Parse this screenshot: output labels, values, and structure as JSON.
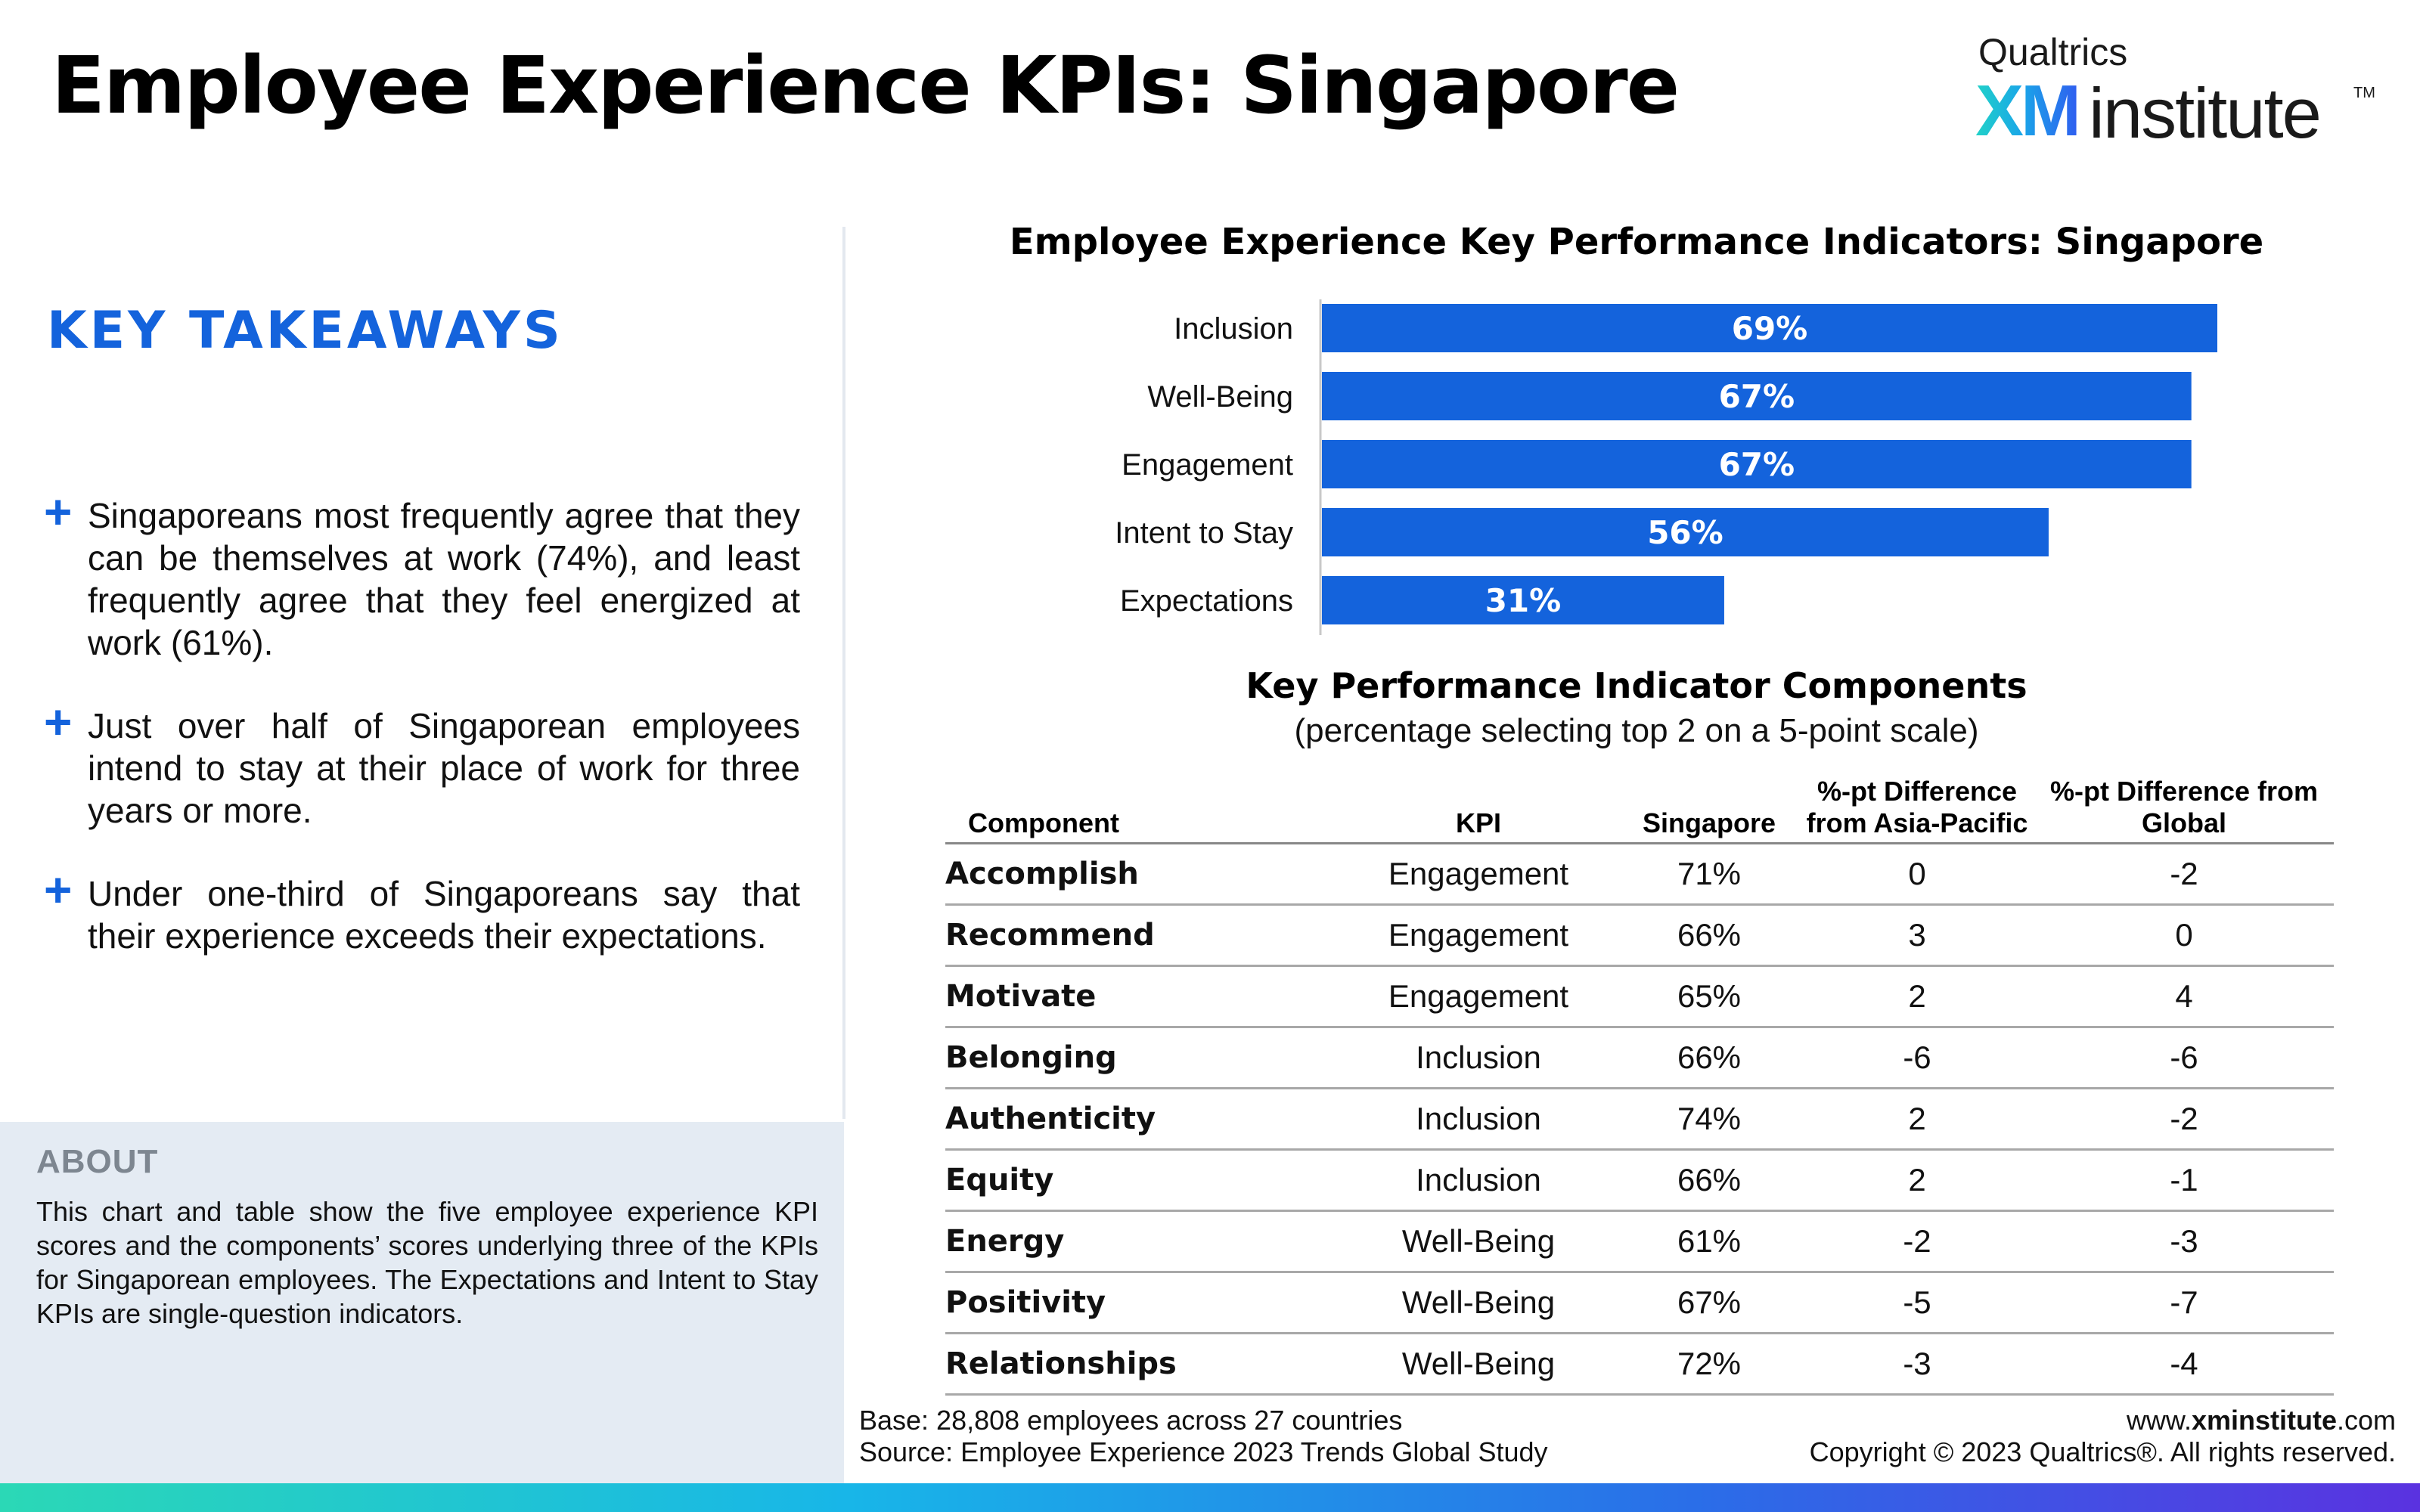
{
  "page": {
    "title": "Employee Experience KPIs: Singapore"
  },
  "logo": {
    "top": "Qualtrics",
    "xm": "XM",
    "institute": "institute",
    "tm": "TM"
  },
  "takeaways": {
    "heading": "KEY TAKEAWAYS",
    "plus_symbol": "+",
    "items": [
      "Singaporeans most frequently agree that they can be themselves at work (74%), and least frequently agree that they feel energized at work (61%).",
      "Just over half of Singaporean employees intend to stay at their place of work for three years or more.",
      "Under one-third of Singaporeans say that their experience exceeds their expectations."
    ]
  },
  "about": {
    "heading": "ABOUT",
    "text": "This chart and table show the five employee experience KPI scores and the components’ scores underlying three of the KPIs for Singaporean employees. The Expectations and Intent to Stay KPIs are single-question indicators."
  },
  "chart_data": {
    "type": "bar",
    "orientation": "horizontal",
    "title": "Employee Experience Key Performance Indicators: Singapore",
    "categories": [
      "Inclusion",
      "Well-Being",
      "Engagement",
      "Intent to Stay",
      "Expectations"
    ],
    "values": [
      69,
      67,
      67,
      56,
      31
    ],
    "value_labels": [
      "69%",
      "67%",
      "67%",
      "56%",
      "31%"
    ],
    "unit": "%",
    "xlim": [
      0,
      69
    ],
    "bar_color": "#1463dc",
    "label_color": "#ffffff",
    "grid": false,
    "legend": "none"
  },
  "components": {
    "title": "Key Performance Indicator Components",
    "subtitle": "(percentage selecting top 2 on a 5-point scale)",
    "headers": {
      "component": "Component",
      "kpi": "KPI",
      "singapore": "Singapore",
      "diff_apac_line1": "%-pt Difference",
      "diff_apac_line2": "from Asia-Pacific",
      "diff_global_line1": "%-pt Difference from",
      "diff_global_line2": "Global"
    },
    "rows": [
      {
        "component": "Accomplish",
        "kpi": "Engagement",
        "singapore": "71%",
        "diff_apac": "0",
        "diff_global": "-2"
      },
      {
        "component": "Recommend",
        "kpi": "Engagement",
        "singapore": "66%",
        "diff_apac": "3",
        "diff_global": "0"
      },
      {
        "component": "Motivate",
        "kpi": "Engagement",
        "singapore": "65%",
        "diff_apac": "2",
        "diff_global": "4"
      },
      {
        "component": "Belonging",
        "kpi": "Inclusion",
        "singapore": "66%",
        "diff_apac": "-6",
        "diff_global": "-6"
      },
      {
        "component": "Authenticity",
        "kpi": "Inclusion",
        "singapore": "74%",
        "diff_apac": "2",
        "diff_global": "-2"
      },
      {
        "component": "Equity",
        "kpi": "Inclusion",
        "singapore": "66%",
        "diff_apac": "2",
        "diff_global": "-1"
      },
      {
        "component": "Energy",
        "kpi": "Well-Being",
        "singapore": "61%",
        "diff_apac": "-2",
        "diff_global": "-3"
      },
      {
        "component": "Positivity",
        "kpi": "Well-Being",
        "singapore": "67%",
        "diff_apac": "-5",
        "diff_global": "-7"
      },
      {
        "component": "Relationships",
        "kpi": "Well-Being",
        "singapore": "72%",
        "diff_apac": "-3",
        "diff_global": "-4"
      }
    ]
  },
  "footer": {
    "base": "Base: 28,808 employees across 27 countries",
    "source": "Source: Employee Experience 2023 Trends Global Study",
    "website_prefix": "www.",
    "website_bold": "xminstitute",
    "website_suffix": ".com",
    "copyright": "Copyright © 2023 Qualtrics®. All rights reserved."
  }
}
